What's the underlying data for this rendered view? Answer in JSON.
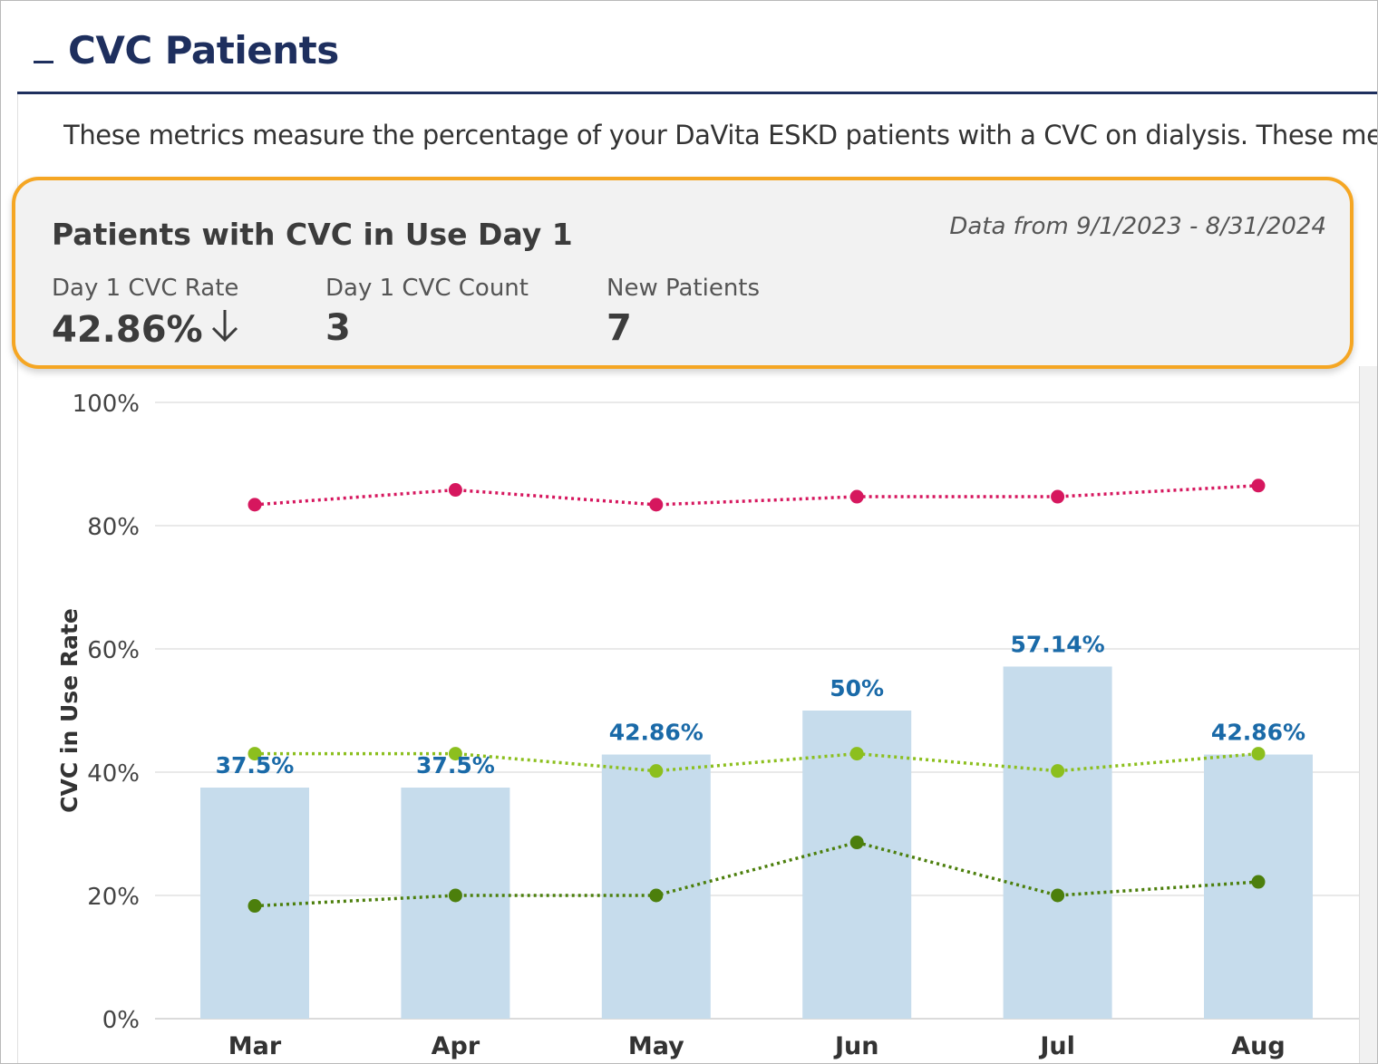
{
  "section": {
    "collapse_icon": "minus-icon",
    "title": "CVC Patients",
    "description": "These metrics measure the percentage of your DaVita ESKD patients with a CVC on dialysis. These metri"
  },
  "kpi": {
    "title": "Patients with CVC in Use Day 1",
    "date_range": "Data from 9/1/2023 - 8/31/2024",
    "metrics": [
      {
        "label": "Day 1 CVC Rate",
        "value": "42.86%",
        "trend_icon": "arrow-down-icon"
      },
      {
        "label": "Day 1 CVC Count",
        "value": "3"
      },
      {
        "label": "New Patients",
        "value": "7"
      }
    ]
  },
  "colors": {
    "header": "#1e2f5e",
    "highlight": "#f5a623",
    "bar": "#c6dcec",
    "bar_label": "#1a6aa8",
    "series_red": "#d6175e",
    "series_lightgreen": "#8cbf1e",
    "series_darkgreen": "#4c7f0c"
  },
  "chart_data": {
    "type": "bar",
    "categories": [
      "Mar",
      "Apr",
      "May",
      "Jun",
      "Jul",
      "Aug"
    ],
    "ylabel": "CVC in Use Rate",
    "ylim": [
      0,
      100
    ],
    "yticks": [
      0,
      20,
      40,
      60,
      80,
      100
    ],
    "ytick_labels": [
      "0%",
      "20%",
      "40%",
      "60%",
      "80%",
      "100%"
    ],
    "bars": {
      "values": [
        37.5,
        37.5,
        42.86,
        50,
        57.14,
        42.86
      ],
      "labels": [
        "37.5%",
        "37.5%",
        "42.86%",
        "50%",
        "57.14%",
        "42.86%"
      ]
    },
    "lines": [
      {
        "values": [
          83.4,
          85.8,
          83.4,
          84.7,
          84.7,
          86.5
        ],
        "color": "#d6175e",
        "style": "dotted"
      },
      {
        "values": [
          43.0,
          43.0,
          40.2,
          43.0,
          40.2,
          43.0
        ],
        "color": "#8cbf1e",
        "style": "dotted"
      },
      {
        "values": [
          18.3,
          20.0,
          20.0,
          28.6,
          20.0,
          22.2
        ],
        "color": "#4c7f0c",
        "style": "dotted"
      }
    ],
    "grid": true
  }
}
